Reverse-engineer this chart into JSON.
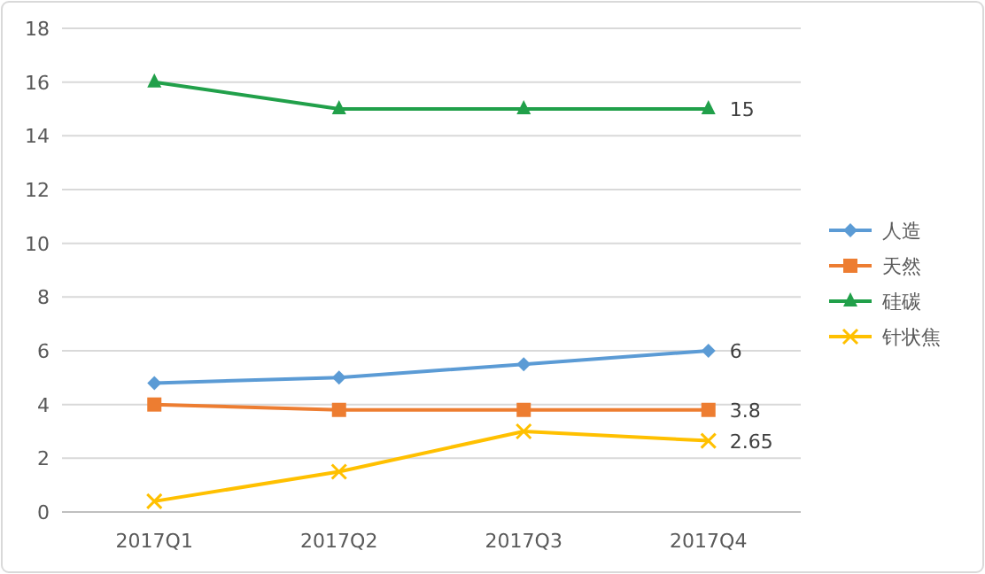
{
  "chart_data": {
    "type": "line",
    "categories": [
      "2017Q1",
      "2017Q2",
      "2017Q3",
      "2017Q4"
    ],
    "series": [
      {
        "name": "人造",
        "color": "#5b9bd5",
        "marker": "diamond",
        "values": [
          4.8,
          5.0,
          5.5,
          6
        ],
        "value_labels": [
          null,
          null,
          null,
          "6"
        ]
      },
      {
        "name": "天然",
        "color": "#ed7d31",
        "marker": "square",
        "values": [
          4.0,
          3.8,
          3.8,
          3.8
        ],
        "value_labels": [
          null,
          null,
          null,
          "3.8"
        ]
      },
      {
        "name": "硅碳",
        "color": "#21a04a",
        "marker": "triangle",
        "values": [
          16,
          15,
          15,
          15
        ],
        "value_labels": [
          null,
          null,
          null,
          "15"
        ]
      },
      {
        "name": "针状焦",
        "color": "#ffc000",
        "marker": "cross",
        "values": [
          0.4,
          1.5,
          3.0,
          2.65
        ],
        "value_labels": [
          null,
          null,
          null,
          "2.65"
        ]
      }
    ],
    "ylim": [
      0,
      18
    ],
    "yticks": [
      0,
      2,
      4,
      6,
      8,
      10,
      12,
      14,
      16,
      18
    ],
    "grid": "y",
    "legend": "right"
  }
}
